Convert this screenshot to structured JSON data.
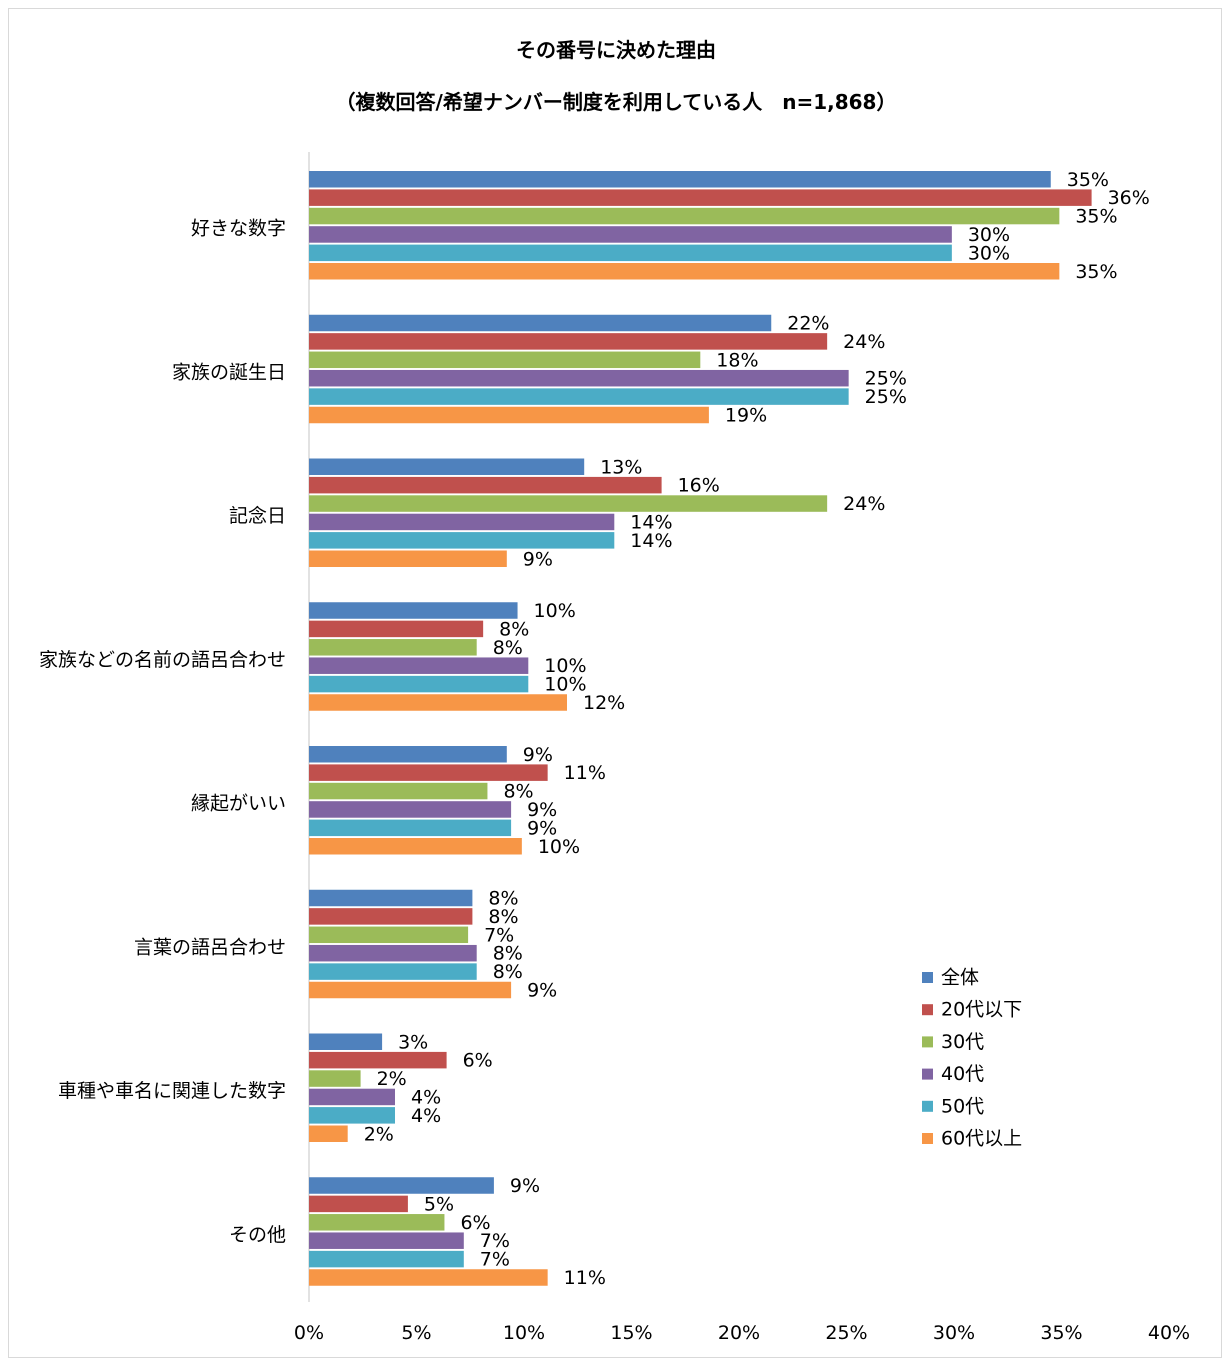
{
  "chart_data": {
    "type": "bar",
    "orientation": "horizontal",
    "title": "その番号に決めた理由",
    "subtitle": "（複数回答/希望ナンバー制度を利用している人　n=1,868）",
    "categories": [
      "好きな数字",
      "家族の誕生日",
      "記念日",
      "家族などの名前の語呂合わせ",
      "縁起がいい",
      "言葉の語呂合わせ",
      "車種や車名に関連した数字",
      "その他"
    ],
    "series": [
      {
        "name": "全体",
        "color": "#4f81bd",
        "values": [
          35,
          22,
          13,
          10,
          9,
          8,
          3,
          9
        ]
      },
      {
        "name": "20代以下",
        "color": "#c0504d",
        "values": [
          36,
          24,
          16,
          8,
          11,
          8,
          6,
          5
        ]
      },
      {
        "name": "30代",
        "color": "#9bbb59",
        "values": [
          35,
          18,
          24,
          8,
          8,
          7,
          2,
          6
        ]
      },
      {
        "name": "40代",
        "color": "#8064a2",
        "values": [
          30,
          25,
          14,
          10,
          9,
          8,
          4,
          7
        ]
      },
      {
        "name": "50代",
        "color": "#4bacc6",
        "values": [
          30,
          25,
          14,
          10,
          9,
          8,
          4,
          7
        ]
      },
      {
        "name": "60代以上",
        "color": "#f79646",
        "values": [
          35,
          19,
          9,
          12,
          10,
          9,
          2,
          11
        ]
      }
    ],
    "bar_lengths": [
      [
        34.5,
        36.4,
        34.9,
        29.9,
        29.9,
        34.9
      ],
      [
        21.5,
        24.1,
        18.2,
        25.1,
        25.1,
        18.6
      ],
      [
        12.8,
        16.4,
        24.1,
        14.2,
        14.2,
        9.2
      ],
      [
        9.7,
        8.1,
        7.8,
        10.2,
        10.2,
        12.0
      ],
      [
        9.2,
        11.1,
        8.3,
        9.4,
        9.4,
        9.9
      ],
      [
        7.6,
        7.6,
        7.4,
        7.8,
        7.8,
        9.4
      ],
      [
        3.4,
        6.4,
        2.4,
        4.0,
        4.0,
        1.8
      ],
      [
        8.6,
        4.6,
        6.3,
        7.2,
        7.2,
        11.1
      ]
    ],
    "value_unit": "%",
    "xlim": [
      0,
      40
    ],
    "xticks": [
      0,
      5,
      10,
      15,
      20,
      25,
      30,
      35,
      40
    ],
    "xtick_labels": [
      "0%",
      "5%",
      "10%",
      "15%",
      "20%",
      "25%",
      "30%",
      "35%",
      "40%"
    ],
    "grid": false,
    "legend_position": "right"
  }
}
